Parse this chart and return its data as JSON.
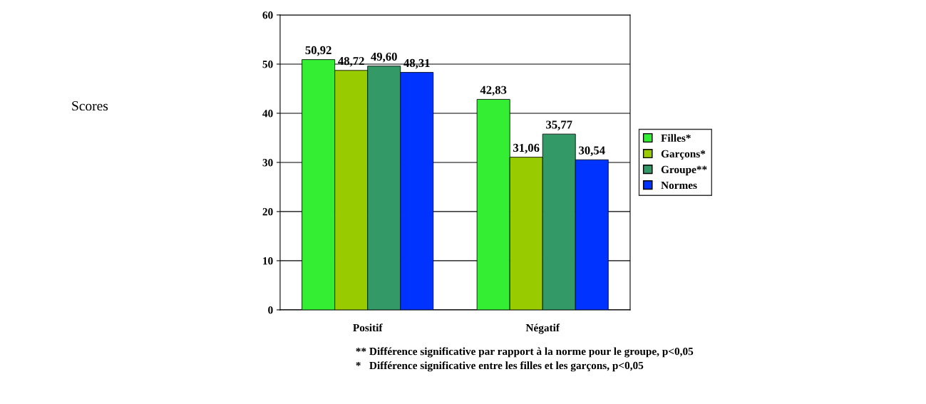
{
  "chart_data": {
    "type": "bar",
    "categories": [
      "Positif",
      "Négatif"
    ],
    "series": [
      {
        "name": "Filles*",
        "color": "#33ee33",
        "values": [
          50.92,
          42.83
        ]
      },
      {
        "name": "Garçons*",
        "color": "#99cc00",
        "values": [
          48.72,
          31.06
        ]
      },
      {
        "name": "Groupe**",
        "color": "#339966",
        "values": [
          49.6,
          35.77
        ]
      },
      {
        "name": "Normes",
        "color": "#0033ff",
        "values": [
          48.31,
          30.54
        ]
      }
    ],
    "value_labels": [
      [
        "50,92",
        "42,83"
      ],
      [
        "48,72",
        "31,06"
      ],
      [
        "49,60",
        "35,77"
      ],
      [
        "48,31",
        "30,54"
      ]
    ],
    "ylim": [
      0,
      60
    ],
    "yticks": [
      0,
      10,
      20,
      30,
      40,
      50,
      60
    ],
    "grid": "y",
    "legend": "right",
    "annotations": [
      "Scores",
      "** Différence significative par rapport à la norme pour le groupe, p<0,05",
      "*   Différence significative entre les filles et les garçons, p<0,05"
    ]
  }
}
